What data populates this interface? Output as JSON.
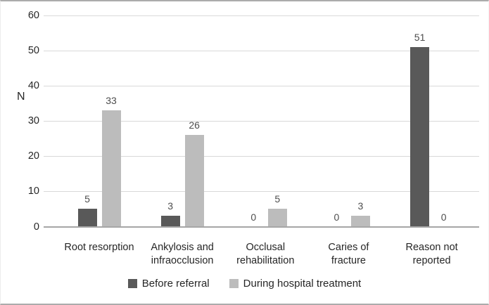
{
  "chart_data": {
    "type": "bar",
    "title": "",
    "ylabel": "N",
    "xlabel": "",
    "categories": [
      "Root resorption",
      "Ankylosis and infraocclusion",
      "Occlusal rehabilitation",
      "Caries of fracture",
      "Reason not reported"
    ],
    "category_label_lines": [
      [
        "Root resorption"
      ],
      [
        "Ankylosis and",
        "infraocclusion"
      ],
      [
        "Occlusal",
        "rehabilitation"
      ],
      [
        "Caries of",
        "fracture"
      ],
      [
        "Reason not",
        "reported"
      ]
    ],
    "series": [
      {
        "name": "Before referral",
        "values": [
          5,
          3,
          0,
          0,
          51
        ],
        "color": "#595959"
      },
      {
        "name": "During hospital treatment",
        "values": [
          33,
          26,
          5,
          3,
          0
        ],
        "color": "#bcbcbc"
      }
    ],
    "ylim": [
      0,
      60
    ],
    "yticks": [
      0,
      10,
      20,
      30,
      40,
      50,
      60
    ],
    "grid": true,
    "value_labels_shown": true,
    "legend_position": "bottom",
    "colors": {
      "gridline": "#d9d9d9",
      "axis_line": "#a6a6a6",
      "value_label_text": "#4d4d4d",
      "axis_text": "#262626",
      "background": "#ffffff",
      "frame_border": "#ababab"
    }
  }
}
